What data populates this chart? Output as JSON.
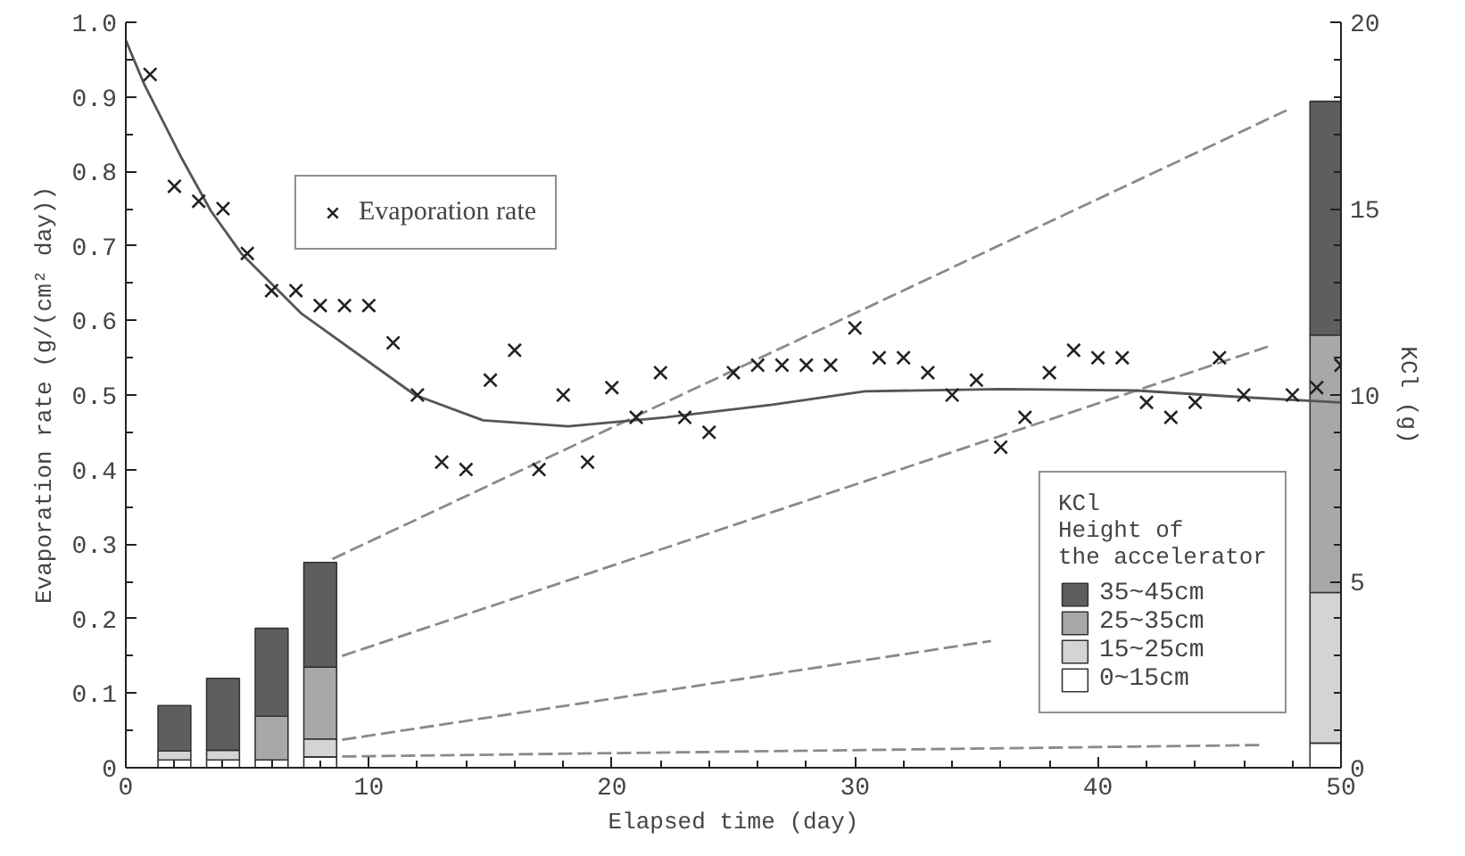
{
  "chart_data": {
    "type": "scatter",
    "xlabel": "Elapsed time (day)",
    "ylabel": "Evaporation rate (g/(cm² day))",
    "y2label": "KCl (g)",
    "legend_title": "KCl\nHeight of\nthe accelerator",
    "xlim": [
      0,
      50
    ],
    "xticks": [
      0,
      10,
      20,
      30,
      40,
      50
    ],
    "ylim": [
      0,
      1.0
    ],
    "yticks": [
      0,
      {
        "value": 0.1,
        "label": "0.1"
      },
      {
        "value": 0.2,
        "label": "0.2"
      },
      {
        "value": 0.3,
        "label": "0.3"
      },
      {
        "value": 0.4,
        "label": "0.4"
      },
      {
        "value": 0.5,
        "label": "0.5"
      },
      {
        "value": 0.6,
        "label": "0.6"
      },
      {
        "value": 0.7,
        "label": "0.7"
      },
      {
        "value": 0.8,
        "label": "0.8"
      },
      {
        "value": 0.9,
        "label": "0.9"
      },
      {
        "value": 1.0,
        "label": "1.0"
      }
    ],
    "y2lim": [
      0,
      20
    ],
    "y2ticks": [
      0,
      5,
      10,
      15,
      20
    ],
    "stacked": true,
    "grid": false,
    "legend": "bottom right",
    "series": [
      {
        "type": "bar",
        "axis": "y2",
        "name": "0~15cm",
        "color": "#ffffff",
        "x": [
          2,
          4,
          6,
          8,
          49.4
        ],
        "values": [
          0.21,
          0.21,
          0.21,
          0.29,
          0.66
        ]
      },
      {
        "type": "bar",
        "axis": "y2",
        "name": "15~25cm",
        "color": "#d4d4d4",
        "x": [
          2,
          4,
          6,
          8,
          49.4
        ],
        "values": [
          0.24,
          0.26,
          0,
          0.48,
          4.04
        ]
      },
      {
        "type": "bar",
        "axis": "y2",
        "name": "25~35cm",
        "color": "#a8a8a8",
        "x": [
          2,
          4,
          6,
          8,
          49.4
        ],
        "values": [
          0,
          0,
          1.17,
          1.93,
          6.91
        ]
      },
      {
        "type": "bar",
        "axis": "y2",
        "name": "35~45cm",
        "color": "#5e5e5e",
        "x": [
          2,
          4,
          6,
          8,
          49.4
        ],
        "values": [
          1.22,
          1.93,
          2.36,
          2.81,
          6.27
        ]
      },
      {
        "type": "line",
        "axis": "y2",
        "line_style": "dashed",
        "color": "#8a8a8a",
        "x": [
          8.5,
          47.8
        ],
        "values": [
          5.6,
          17.65
        ]
      },
      {
        "type": "line",
        "axis": "y2",
        "line_style": "dashed",
        "color": "#8a8a8a",
        "x": [
          8.9,
          47.0
        ],
        "values": [
          3.0,
          11.3
        ]
      },
      {
        "type": "line",
        "axis": "y2",
        "line_style": "dashed",
        "color": "#8a8a8a",
        "x": [
          8.9,
          35.6
        ],
        "values": [
          0.75,
          3.4
        ]
      },
      {
        "type": "line",
        "axis": "y2",
        "line_style": "dashed",
        "color": "#8a8a8a",
        "x": [
          8.9,
          46.8
        ],
        "values": [
          0.3,
          0.61
        ]
      },
      {
        "type": "line",
        "line_style": "solid",
        "color": "#555555",
        "x": [
          0,
          0.77,
          2.26,
          3.5,
          4.75,
          7.2,
          11.9,
          14.7,
          18.2,
          22.2,
          26.6,
          30.4,
          36,
          41.6,
          46,
          50
        ],
        "values": [
          0.976,
          0.916,
          0.82,
          0.747,
          0.69,
          0.61,
          0.5,
          0.466,
          0.458,
          0.47,
          0.487,
          0.505,
          0.508,
          0.506,
          0.497,
          0.49
        ]
      },
      {
        "name": "Evaporation rate",
        "marker": "cross",
        "color": "#222222",
        "x": [
          1,
          2,
          3,
          4,
          5,
          6,
          7,
          8,
          9,
          10,
          11,
          12,
          13,
          14,
          15,
          16,
          17,
          18,
          19,
          20,
          21,
          22,
          23,
          24,
          25,
          26,
          27,
          28,
          29,
          30,
          31,
          32,
          33,
          34,
          35,
          36,
          37,
          38,
          39,
          40,
          41,
          42,
          43,
          44,
          45,
          46,
          48,
          49,
          50
        ],
        "values": [
          0.93,
          0.78,
          0.76,
          0.75,
          0.69,
          0.64,
          0.64,
          0.62,
          0.62,
          0.62,
          0.57,
          0.5,
          0.41,
          0.4,
          0.52,
          0.56,
          0.4,
          0.5,
          0.41,
          0.51,
          0.47,
          0.53,
          0.47,
          0.45,
          0.53,
          0.54,
          0.54,
          0.54,
          0.54,
          0.59,
          0.55,
          0.55,
          0.53,
          0.5,
          0.52,
          0.43,
          0.47,
          0.53,
          0.56,
          0.55,
          0.55,
          0.49,
          0.47,
          0.49,
          0.55,
          0.5,
          0.5,
          0.51,
          0.54
        ]
      }
    ]
  }
}
